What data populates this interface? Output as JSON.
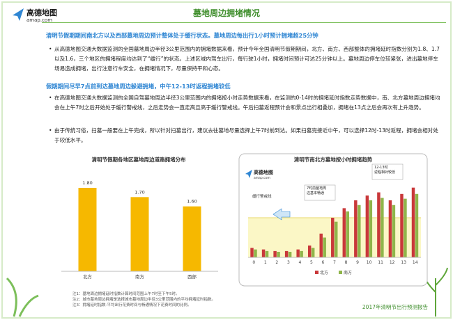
{
  "header": {
    "logo": "高德地图",
    "logo_sub": "amap.com",
    "title": "墓地周边拥堵情况"
  },
  "sections": [
    {
      "heading": "清明节假期期间南北方以及西部墓地周边预计整体处于缓行状态。墓地周边每出行1小时预计拥堵超25分钟",
      "bullets": [
        "从高德地图交通大数据监测的全国墓地周边半径3公里范围内的拥堵数据来看，预计今年全国清明节假期期间，北方、南方、西部整体的拥堵延时指数分别为1.8、1.7以及1.6，三个地区的拥堵程度均达到了“缓行”的状态。上述区域内驾车出行，每行驶1小时，拥堵时间预计可达25分钟以上。墓地周边停车位较紧张，进出墓地停车场易造成拥堵，出行注意行车安全，在拥堵情况下，尽量保持平和心态。"
      ]
    },
    {
      "heading": "假期期间尽早7点前到达墓地周边躲避拥堵，中午12-13时返程拥堵较低",
      "bullets": [
        "在高德地图交通大数据监测的全国自驾墓地周边半径3公里范围内的拥堵按小时走势数据来看，在监测的0-14时的拥堵延时指数走势数据中，南、北方墓地周边拥堵均会在上午7时之后开始处于缓行警戒线，之后走势会一直走高且高于缓行警戒线。午后扫墓返程预计会和景点出行相叠加，拥堵在13点之后会再次有上升趋势。",
        "由于传统习俗，扫墓一般要在上午完成，所以针对扫墓出行，建议去往墓地尽量选择上午7时前到达。如果扫墓完接近中午，可以选择12时-13时返程，拥堵会相对处于较低水平。"
      ]
    }
  ],
  "chart_data": [
    {
      "type": "bar",
      "title": "清明节假期各地区墓地周边道路拥堵分布",
      "categories": [
        "北方",
        "南方",
        "西部"
      ],
      "values": [
        1.8,
        1.7,
        1.6
      ],
      "value_labels": [
        "1.80",
        "1.70",
        "1.60"
      ],
      "color": "#f6b800",
      "ylim": [
        0.9,
        1.95
      ]
    },
    {
      "type": "grouped_bar",
      "title": "清明节南北方墓地按小时拥堵趋势",
      "x": [
        0,
        1,
        2,
        3,
        4,
        5,
        6,
        7,
        8,
        9,
        10,
        11,
        12,
        13,
        14
      ],
      "series": [
        {
          "name": "北方",
          "color": "#c9383a",
          "values": [
            1.12,
            1.1,
            1.08,
            1.08,
            1.1,
            1.15,
            1.3,
            1.5,
            1.62,
            1.72,
            1.78,
            1.82,
            1.72,
            1.8,
            1.88
          ]
        },
        {
          "name": "南方",
          "color": "#8fb54a",
          "values": [
            1.1,
            1.08,
            1.07,
            1.07,
            1.08,
            1.12,
            1.25,
            1.45,
            1.58,
            1.66,
            1.72,
            1.75,
            1.66,
            1.74,
            1.8
          ]
        }
      ],
      "ylim": [
        1.0,
        2.0
      ],
      "threshold": {
        "value": 1.5,
        "label": "缓行警戒线"
      },
      "annotations": [
        "7时前墓地周边基本畅通",
        "12-13时返程相对较低"
      ]
    }
  ],
  "notes": [
    "注1：墓地周边拥堵延时指数计算时间范围上午7时至下午5时。",
    "注2：城市墓地周边拥堵是选择城市墓地周边半径3公里范围内的平均拥堵延时指数。",
    "注3：拥堵延时指数-平均出行花费时间与畅通情况下花费时间的比例。"
  ],
  "footer": "2017年清明节出行预测报告"
}
